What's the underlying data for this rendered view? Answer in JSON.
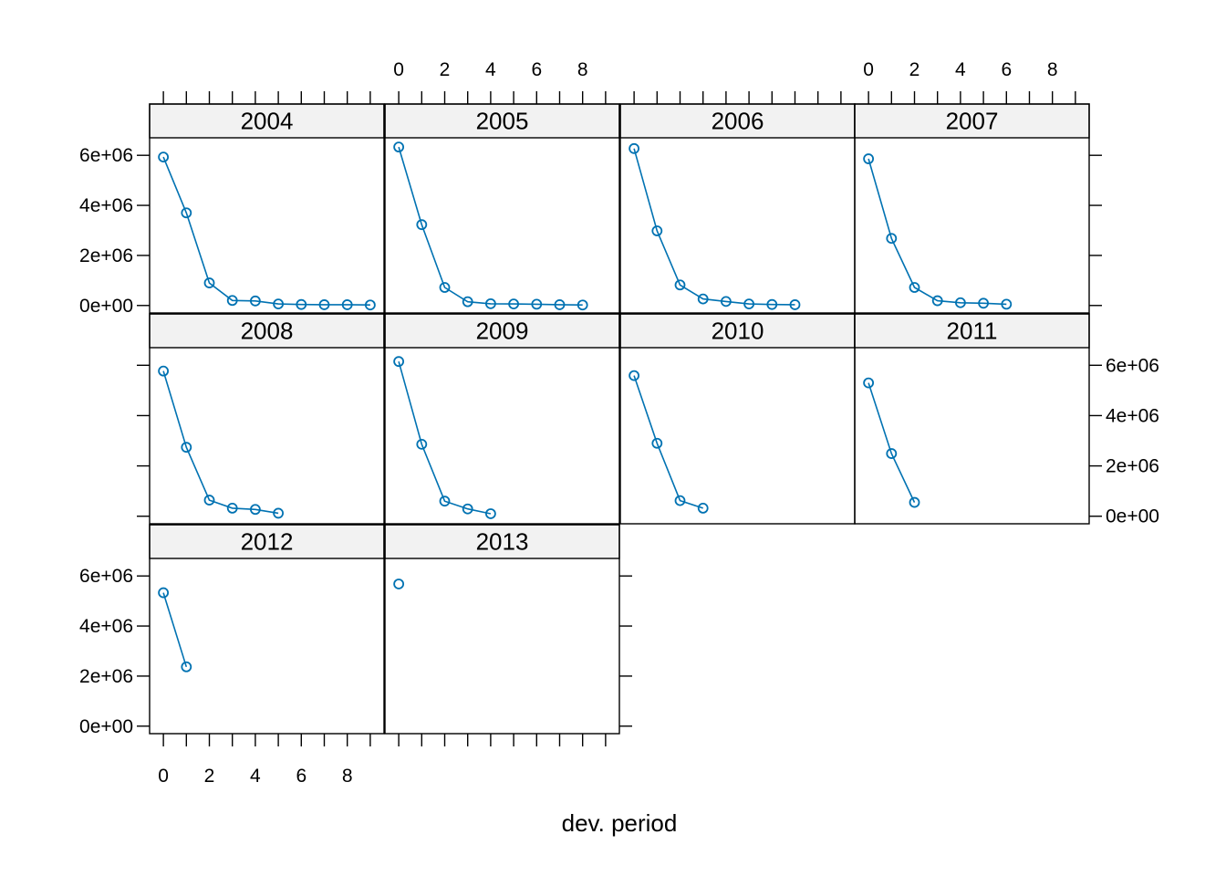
{
  "chart_data": {
    "type": "line",
    "xlabel": "dev. period",
    "ylabel": "",
    "x_ticks": [
      0,
      2,
      4,
      6,
      8
    ],
    "y_ticks": [
      "0e+00",
      "2e+06",
      "4e+06",
      "6e+06"
    ],
    "y_tick_values": [
      0,
      2000000,
      4000000,
      6000000
    ],
    "xlim": [
      -0.6,
      9.6
    ],
    "ylim": [
      -300000,
      6700000
    ],
    "series_color": "#0072B2",
    "strip_color": "#F2F2F2",
    "panels": [
      {
        "name": "2004",
        "x": [
          0,
          1,
          2,
          3,
          4,
          5,
          6,
          7,
          8,
          9
        ],
        "values": [
          5930000,
          3700000,
          900000,
          200000,
          180000,
          60000,
          40000,
          30000,
          30000,
          20000
        ]
      },
      {
        "name": "2005",
        "x": [
          0,
          1,
          2,
          3,
          4,
          5,
          6,
          7,
          8
        ],
        "values": [
          6330000,
          3230000,
          720000,
          150000,
          70000,
          60000,
          50000,
          30000,
          20000
        ]
      },
      {
        "name": "2006",
        "x": [
          0,
          1,
          2,
          3,
          4,
          5,
          6,
          7
        ],
        "values": [
          6270000,
          2980000,
          820000,
          260000,
          160000,
          60000,
          40000,
          30000
        ]
      },
      {
        "name": "2007",
        "x": [
          0,
          1,
          2,
          3,
          4,
          5,
          6
        ],
        "values": [
          5860000,
          2680000,
          720000,
          190000,
          110000,
          90000,
          50000
        ]
      },
      {
        "name": "2008",
        "x": [
          0,
          1,
          2,
          3,
          4,
          5
        ],
        "values": [
          5770000,
          2740000,
          640000,
          320000,
          270000,
          120000
        ]
      },
      {
        "name": "2009",
        "x": [
          0,
          1,
          2,
          3,
          4
        ],
        "values": [
          6150000,
          2860000,
          600000,
          290000,
          100000
        ]
      },
      {
        "name": "2010",
        "x": [
          0,
          1,
          2,
          3
        ],
        "values": [
          5590000,
          2900000,
          620000,
          320000
        ]
      },
      {
        "name": "2011",
        "x": [
          0,
          1,
          2
        ],
        "values": [
          5300000,
          2490000,
          550000
        ]
      },
      {
        "name": "2012",
        "x": [
          0,
          1
        ],
        "values": [
          5330000,
          2370000
        ]
      },
      {
        "name": "2013",
        "x": [
          0
        ],
        "values": [
          5680000
        ]
      }
    ]
  }
}
